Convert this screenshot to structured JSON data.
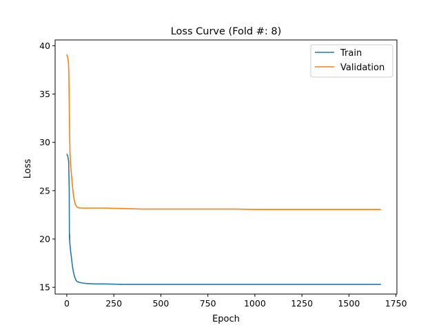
{
  "chart_data": {
    "type": "line",
    "title": "Loss Curve (Fold #: 8)",
    "xlabel": "Epoch",
    "ylabel": "Loss",
    "xlim": [
      -62,
      1755
    ],
    "ylim": [
      14.3,
      40.6
    ],
    "xticks": [
      0,
      250,
      500,
      750,
      1000,
      1250,
      1500,
      1750
    ],
    "yticks": [
      15,
      20,
      25,
      30,
      35,
      40
    ],
    "grid": false,
    "legend_position": "top-right",
    "series": [
      {
        "name": "Train",
        "color": "#1f77b4",
        "x": [
          0,
          5,
          10,
          13,
          14,
          15,
          16,
          20,
          25,
          30,
          35,
          40,
          45,
          50,
          55,
          60,
          70,
          80,
          100,
          150,
          200,
          300,
          400,
          500,
          600,
          700,
          800,
          900,
          1000,
          1100,
          1200,
          1300,
          1400,
          1500,
          1600,
          1670
        ],
        "y": [
          28.8,
          28.6,
          28.0,
          25.0,
          20.0,
          20.5,
          19.6,
          18.8,
          18.0,
          17.2,
          16.6,
          16.2,
          15.9,
          15.7,
          15.6,
          15.55,
          15.5,
          15.45,
          15.4,
          15.35,
          15.35,
          15.3,
          15.3,
          15.3,
          15.3,
          15.3,
          15.3,
          15.3,
          15.3,
          15.3,
          15.3,
          15.3,
          15.3,
          15.3,
          15.3,
          15.3
        ]
      },
      {
        "name": "Validation",
        "color": "#ff7f0e",
        "x": [
          0,
          3,
          6,
          9,
          11,
          13,
          15,
          17,
          20,
          25,
          30,
          35,
          40,
          45,
          50,
          55,
          60,
          70,
          80,
          100,
          150,
          200,
          300,
          400,
          500,
          600,
          700,
          800,
          900,
          1000,
          1100,
          1200,
          1300,
          1400,
          1500,
          1600,
          1670
        ],
        "y": [
          39.1,
          38.9,
          38.7,
          38.2,
          37.0,
          34.0,
          31.0,
          29.0,
          27.8,
          26.6,
          25.5,
          24.6,
          24.0,
          23.6,
          23.4,
          23.3,
          23.25,
          23.2,
          23.2,
          23.2,
          23.2,
          23.2,
          23.15,
          23.1,
          23.1,
          23.1,
          23.1,
          23.1,
          23.1,
          23.05,
          23.05,
          23.05,
          23.05,
          23.05,
          23.05,
          23.05,
          23.05
        ]
      }
    ]
  }
}
